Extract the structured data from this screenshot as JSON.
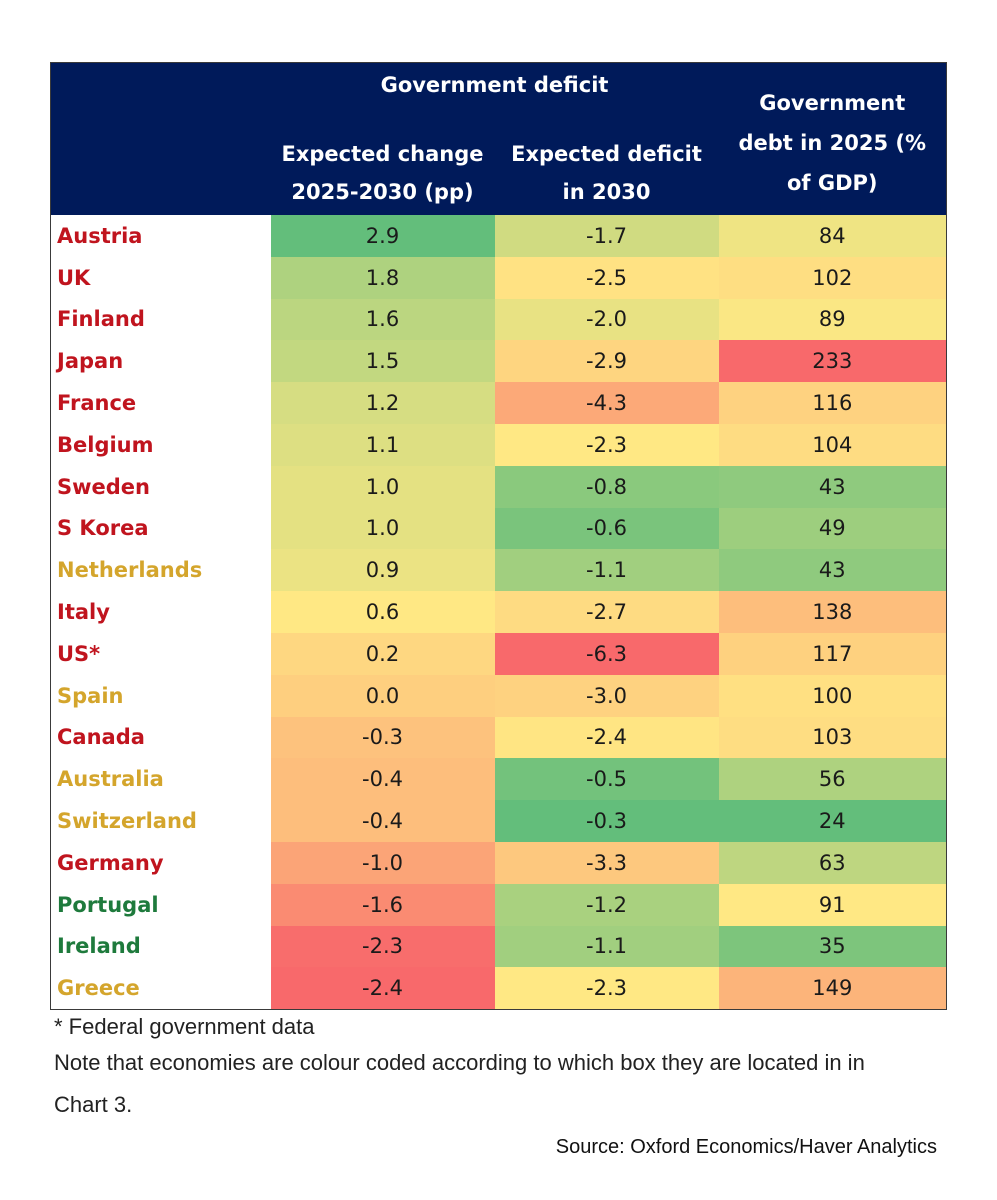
{
  "chart_data": {
    "type": "table",
    "title": "",
    "group_header": "Government deficit",
    "columns": [
      "",
      "Expected change 2025-2030 (pp)",
      "Expected deficit in 2030",
      "Government debt in 2025 (% of GDP)"
    ],
    "column_header_lines": [
      [
        "Expected change",
        "2025-2030 (pp)"
      ],
      [
        "Expected deficit",
        "in 2030"
      ],
      [
        "Government",
        "debt in 2025 (%",
        "of GDP)"
      ]
    ],
    "rows": [
      {
        "country": "Austria",
        "group": "red",
        "change": "2.9",
        "deficit": "-1.7",
        "debt": "84"
      },
      {
        "country": "UK",
        "group": "red",
        "change": "1.8",
        "deficit": "-2.5",
        "debt": "102"
      },
      {
        "country": "Finland",
        "group": "red",
        "change": "1.6",
        "deficit": "-2.0",
        "debt": "89"
      },
      {
        "country": "Japan",
        "group": "red",
        "change": "1.5",
        "deficit": "-2.9",
        "debt": "233"
      },
      {
        "country": "France",
        "group": "red",
        "change": "1.2",
        "deficit": "-4.3",
        "debt": "116"
      },
      {
        "country": "Belgium",
        "group": "red",
        "change": "1.1",
        "deficit": "-2.3",
        "debt": "104"
      },
      {
        "country": "Sweden",
        "group": "red",
        "change": "1.0",
        "deficit": "-0.8",
        "debt": "43"
      },
      {
        "country": "S Korea",
        "group": "red",
        "change": "1.0",
        "deficit": "-0.6",
        "debt": "49"
      },
      {
        "country": "Netherlands",
        "group": "yellow",
        "change": "0.9",
        "deficit": "-1.1",
        "debt": "43"
      },
      {
        "country": "Italy",
        "group": "red",
        "change": "0.6",
        "deficit": "-2.7",
        "debt": "138"
      },
      {
        "country": "US*",
        "group": "red",
        "change": "0.2",
        "deficit": "-6.3",
        "debt": "117"
      },
      {
        "country": "Spain",
        "group": "yellow",
        "change": "0.0",
        "deficit": "-3.0",
        "debt": "100"
      },
      {
        "country": "Canada",
        "group": "red",
        "change": "-0.3",
        "deficit": "-2.4",
        "debt": "103"
      },
      {
        "country": "Australia",
        "group": "yellow",
        "change": "-0.4",
        "deficit": "-0.5",
        "debt": "56"
      },
      {
        "country": "Switzerland",
        "group": "yellow",
        "change": "-0.4",
        "deficit": "-0.3",
        "debt": "24"
      },
      {
        "country": "Germany",
        "group": "red",
        "change": "-1.0",
        "deficit": "-3.3",
        "debt": "63"
      },
      {
        "country": "Portugal",
        "group": "green",
        "change": "-1.6",
        "deficit": "-1.2",
        "debt": "91"
      },
      {
        "country": "Ireland",
        "group": "green",
        "change": "-2.3",
        "deficit": "-1.1",
        "debt": "35"
      },
      {
        "country": "Greece",
        "group": "yellow",
        "change": "-2.4",
        "deficit": "-2.3",
        "debt": "149"
      }
    ]
  },
  "colors": {
    "header_bg": "#001a5a",
    "label_red": "#c0141e",
    "label_yellow": "#d4a52c",
    "label_green": "#1e7a3c",
    "scale_green": "#63be7b",
    "scale_yellow": "#ffe884",
    "scale_red": "#f8696b"
  },
  "footnotes": {
    "asterisk": "* Federal government data",
    "note": "Note that economies are colour coded according to which box they are located in in Chart 3."
  },
  "source": "Source: Oxford Economics/Haver Analytics"
}
